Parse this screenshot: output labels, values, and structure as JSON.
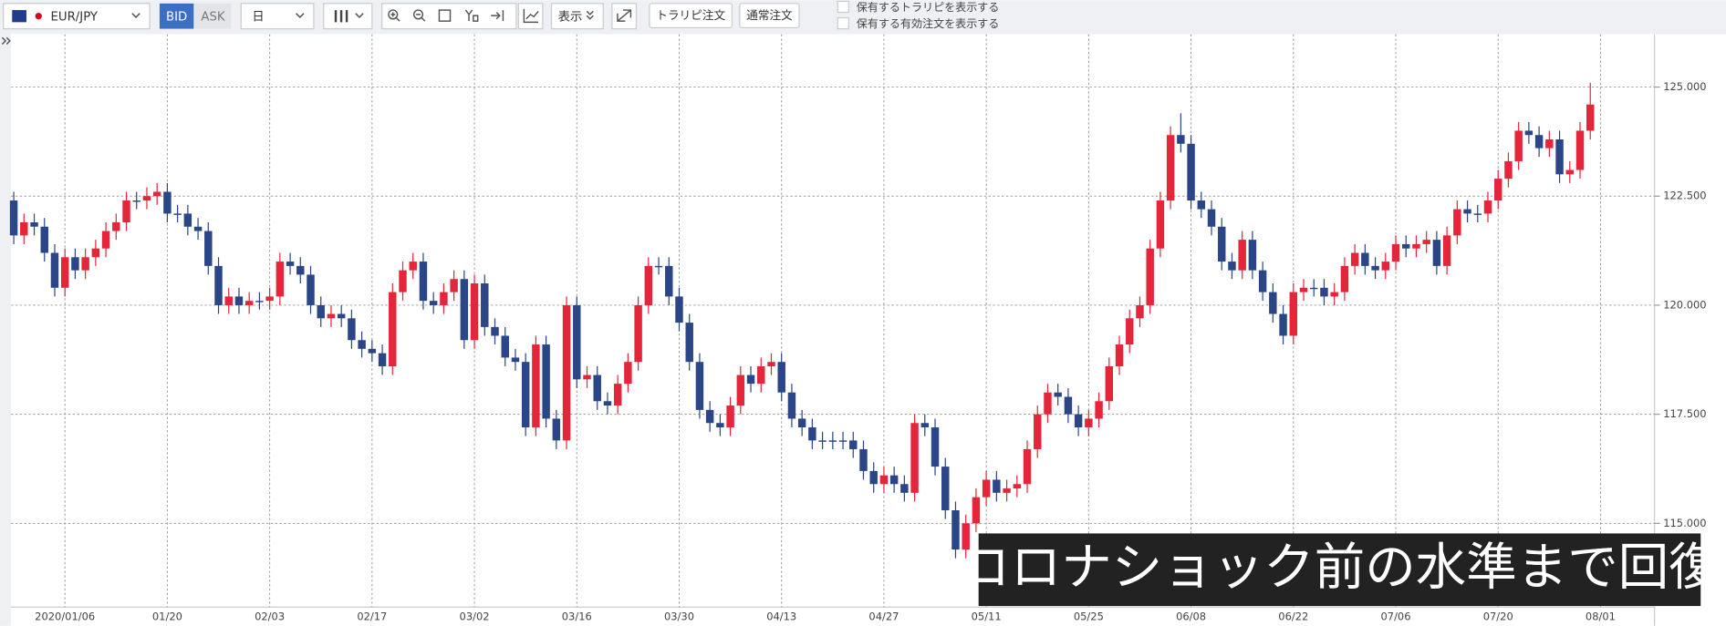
{
  "toolbar": {
    "symbol": "EUR/JPY",
    "price_side": [
      "BID",
      "ASK"
    ],
    "period": "日",
    "display": "表示",
    "orders": [
      "トラリピ注文",
      "通常注文"
    ],
    "options": [
      "保有するトラリピを表示する",
      "保有する有効注文を表示する"
    ]
  },
  "chart_data": {
    "type": "candlestick",
    "categories": [
      null,
      null,
      null,
      null,
      null,
      "2020/01/06",
      null,
      null,
      null,
      null,
      null,
      null,
      null,
      null,
      null,
      "01/20",
      null,
      null,
      null,
      null,
      null,
      null,
      null,
      null,
      null,
      "02/03",
      null,
      null,
      null,
      null,
      null,
      null,
      null,
      null,
      null,
      "02/17",
      null,
      null,
      null,
      null,
      null,
      null,
      null,
      null,
      null,
      "03/02",
      null,
      null,
      null,
      null,
      null,
      null,
      null,
      null,
      null,
      "03/16",
      null,
      null,
      null,
      null,
      null,
      null,
      null,
      null,
      null,
      "03/30",
      null,
      null,
      null,
      null,
      null,
      null,
      null,
      null,
      null,
      "04/13",
      null,
      null,
      null,
      null,
      null,
      null,
      null,
      null,
      null,
      "04/27",
      null,
      null,
      null,
      null,
      null,
      null,
      null,
      null,
      null,
      "05/11",
      null,
      null,
      null,
      null,
      null,
      null,
      null,
      null,
      null,
      "05/25",
      null,
      null,
      null,
      null,
      null,
      null,
      null,
      null,
      null,
      "06/08",
      null,
      null,
      null,
      null,
      null,
      null,
      null,
      null,
      null,
      "06/22",
      null,
      null,
      null,
      null,
      null,
      null,
      null,
      null,
      null,
      "07/06",
      null,
      null,
      null,
      null,
      null,
      null,
      null,
      null,
      null,
      "07/20",
      null,
      null,
      null,
      null,
      null,
      null,
      null,
      null,
      null,
      "08/01"
    ],
    "open": [
      122.4,
      121.6,
      121.9,
      121.8,
      121.2,
      120.4,
      121.1,
      120.8,
      121.1,
      121.3,
      121.7,
      121.9,
      122.4,
      122.4,
      122.5,
      122.6,
      122.1,
      122.1,
      121.8,
      121.7,
      120.9,
      120.0,
      120.2,
      120.0,
      120.1,
      120.1,
      120.2,
      121.0,
      120.9,
      120.7,
      120.0,
      119.7,
      119.8,
      119.7,
      119.2,
      119.0,
      118.9,
      118.6,
      120.3,
      120.8,
      121.0,
      120.1,
      120.0,
      120.3,
      120.6,
      119.2,
      120.5,
      119.5,
      119.3,
      118.8,
      118.7,
      117.2,
      119.1,
      117.4,
      116.9,
      120.0,
      118.3,
      118.4,
      117.8,
      117.7,
      118.2,
      118.7,
      120.0,
      120.9,
      120.9,
      120.2,
      119.6,
      118.7,
      117.6,
      117.3,
      117.2,
      117.7,
      118.4,
      118.2,
      118.6,
      118.7,
      118.0,
      117.4,
      117.2,
      116.9,
      116.9,
      116.9,
      116.9,
      116.7,
      116.2,
      115.9,
      116.1,
      115.9,
      115.7,
      117.3,
      117.2,
      116.3,
      115.3,
      114.4,
      115.0,
      115.6,
      116.0,
      115.7,
      115.8,
      115.9,
      116.7,
      117.5,
      118.0,
      117.9,
      117.5,
      117.2,
      117.4,
      117.8,
      118.6,
      119.1,
      119.7,
      120.0,
      121.3,
      122.4,
      123.9,
      123.7,
      122.4,
      122.2,
      121.8,
      121.0,
      120.8,
      121.5,
      120.8,
      120.3,
      119.8,
      119.3,
      120.3,
      120.4,
      120.4,
      120.2,
      120.3,
      120.9,
      121.2,
      120.9,
      120.8,
      121.0,
      121.4,
      121.3,
      121.4,
      121.5,
      120.9,
      121.6,
      122.2,
      122.1,
      122.1,
      122.4,
      122.9,
      123.3,
      124.0,
      123.9,
      123.6,
      123.8,
      123.0,
      123.1,
      124.0,
      null
    ],
    "high": [
      122.6,
      122.1,
      122.1,
      122.0,
      121.4,
      121.3,
      121.3,
      121.3,
      121.5,
      121.9,
      122.1,
      122.6,
      122.6,
      122.7,
      122.8,
      122.8,
      122.3,
      122.3,
      122.0,
      121.9,
      121.1,
      120.4,
      120.4,
      120.3,
      120.3,
      120.4,
      121.2,
      121.2,
      121.1,
      120.9,
      120.2,
      120.0,
      120.0,
      119.9,
      119.4,
      119.2,
      119.1,
      120.5,
      121.0,
      121.2,
      121.2,
      120.3,
      120.5,
      120.8,
      120.8,
      120.7,
      120.7,
      119.7,
      119.5,
      119.0,
      118.9,
      119.3,
      119.3,
      117.6,
      120.2,
      120.2,
      118.6,
      118.6,
      118.0,
      118.4,
      118.9,
      120.2,
      121.1,
      121.1,
      121.1,
      120.4,
      119.8,
      118.9,
      117.8,
      117.5,
      117.9,
      118.6,
      118.6,
      118.8,
      118.9,
      118.9,
      118.2,
      117.6,
      117.4,
      117.1,
      117.1,
      117.1,
      117.1,
      116.9,
      116.4,
      116.3,
      116.3,
      116.1,
      117.5,
      117.5,
      117.4,
      116.5,
      115.5,
      115.2,
      115.8,
      116.2,
      116.2,
      116.0,
      116.1,
      116.9,
      117.7,
      118.2,
      118.2,
      118.1,
      117.7,
      117.6,
      118.0,
      118.8,
      119.3,
      119.9,
      120.2,
      121.5,
      122.6,
      124.1,
      124.4,
      123.9,
      122.6,
      122.4,
      122.0,
      121.2,
      121.7,
      121.7,
      121.0,
      120.5,
      120.0,
      120.5,
      120.6,
      120.6,
      120.6,
      120.5,
      121.1,
      121.4,
      121.4,
      121.1,
      121.2,
      121.6,
      121.6,
      121.6,
      121.7,
      121.7,
      121.8,
      122.4,
      122.4,
      122.3,
      122.6,
      123.1,
      123.5,
      124.2,
      124.2,
      124.1,
      124.0,
      124.0,
      123.3,
      124.2,
      125.1,
      null
    ],
    "low": [
      121.4,
      121.4,
      121.6,
      121.0,
      120.2,
      120.2,
      120.6,
      120.6,
      120.9,
      121.1,
      121.5,
      121.7,
      122.2,
      122.2,
      122.3,
      121.9,
      121.9,
      121.6,
      121.5,
      120.7,
      119.8,
      119.8,
      119.8,
      119.8,
      119.9,
      119.9,
      120.0,
      120.7,
      120.5,
      119.8,
      119.5,
      119.5,
      119.5,
      119.0,
      118.8,
      118.7,
      118.4,
      118.4,
      120.1,
      120.6,
      119.9,
      119.8,
      119.8,
      120.1,
      119.0,
      119.0,
      119.3,
      119.1,
      118.6,
      118.5,
      117.0,
      117.0,
      117.2,
      116.7,
      116.7,
      118.1,
      118.1,
      117.6,
      117.5,
      117.5,
      118.0,
      118.5,
      119.8,
      120.7,
      120.0,
      119.4,
      118.5,
      117.4,
      117.1,
      117.0,
      117.0,
      117.5,
      118.0,
      118.0,
      118.4,
      117.8,
      117.2,
      117.0,
      116.7,
      116.7,
      116.7,
      116.7,
      116.5,
      116.0,
      115.7,
      115.7,
      115.7,
      115.5,
      115.5,
      117.0,
      116.1,
      115.1,
      114.2,
      114.2,
      114.8,
      115.4,
      115.5,
      115.5,
      115.6,
      115.7,
      116.5,
      117.3,
      117.7,
      117.3,
      117.0,
      117.0,
      117.2,
      117.6,
      118.4,
      118.9,
      119.5,
      119.8,
      121.1,
      122.2,
      123.5,
      122.2,
      122.0,
      121.6,
      120.8,
      120.6,
      120.6,
      120.6,
      120.1,
      119.6,
      119.1,
      119.1,
      120.1,
      120.2,
      120.0,
      120.0,
      120.1,
      120.7,
      120.7,
      120.6,
      120.6,
      120.8,
      121.1,
      121.1,
      121.2,
      120.7,
      120.7,
      121.4,
      121.9,
      121.9,
      121.9,
      122.2,
      122.7,
      123.1,
      123.7,
      123.4,
      123.4,
      122.8,
      122.8,
      122.9,
      123.8,
      null
    ],
    "close": [
      121.6,
      121.9,
      121.8,
      121.2,
      120.4,
      121.1,
      120.8,
      121.1,
      121.3,
      121.7,
      121.9,
      122.4,
      122.4,
      122.5,
      122.6,
      122.1,
      122.1,
      121.8,
      121.7,
      120.9,
      120.0,
      120.2,
      120.0,
      120.1,
      120.1,
      120.2,
      121.0,
      120.9,
      120.7,
      120.0,
      119.7,
      119.8,
      119.7,
      119.2,
      119.0,
      118.9,
      118.6,
      120.3,
      120.8,
      121.0,
      120.1,
      120.0,
      120.3,
      120.6,
      119.2,
      120.5,
      119.5,
      119.3,
      118.8,
      118.7,
      117.2,
      119.1,
      117.4,
      116.9,
      120.0,
      118.3,
      118.4,
      117.8,
      117.7,
      118.2,
      118.7,
      120.0,
      120.9,
      120.9,
      120.2,
      119.6,
      118.7,
      117.6,
      117.3,
      117.2,
      117.7,
      118.4,
      118.2,
      118.6,
      118.7,
      118.0,
      117.4,
      117.2,
      116.9,
      116.9,
      116.9,
      116.9,
      116.7,
      116.2,
      115.9,
      116.1,
      115.9,
      115.7,
      117.3,
      117.2,
      116.3,
      115.3,
      114.4,
      115.0,
      115.6,
      116.0,
      115.7,
      115.8,
      115.9,
      116.7,
      117.5,
      118.0,
      117.9,
      117.5,
      117.2,
      117.4,
      117.8,
      118.6,
      119.1,
      119.7,
      120.0,
      121.3,
      122.4,
      123.9,
      123.7,
      122.4,
      122.2,
      121.8,
      121.0,
      120.8,
      121.5,
      120.8,
      120.3,
      119.8,
      119.3,
      120.3,
      120.4,
      120.4,
      120.2,
      120.3,
      120.9,
      121.2,
      120.9,
      120.8,
      121.0,
      121.4,
      121.3,
      121.4,
      121.5,
      120.9,
      121.6,
      122.2,
      122.1,
      122.1,
      122.4,
      122.9,
      123.3,
      124.0,
      123.9,
      123.6,
      123.8,
      123.0,
      123.1,
      124.0,
      124.6,
      null
    ],
    "up_color": "#e5253a",
    "down_color": "#2a4687",
    "ylim": [
      113.08,
      126.21
    ],
    "yticks": [
      {
        "value": 115,
        "label": "115.000"
      },
      {
        "value": 117.5,
        "label": "117.500"
      },
      {
        "value": 120,
        "label": "120.000"
      },
      {
        "value": 122.5,
        "label": "122.500"
      },
      {
        "value": 125,
        "label": "125.000"
      }
    ],
    "grid": true,
    "annotation": "コロナショック前の水準まで回復"
  }
}
